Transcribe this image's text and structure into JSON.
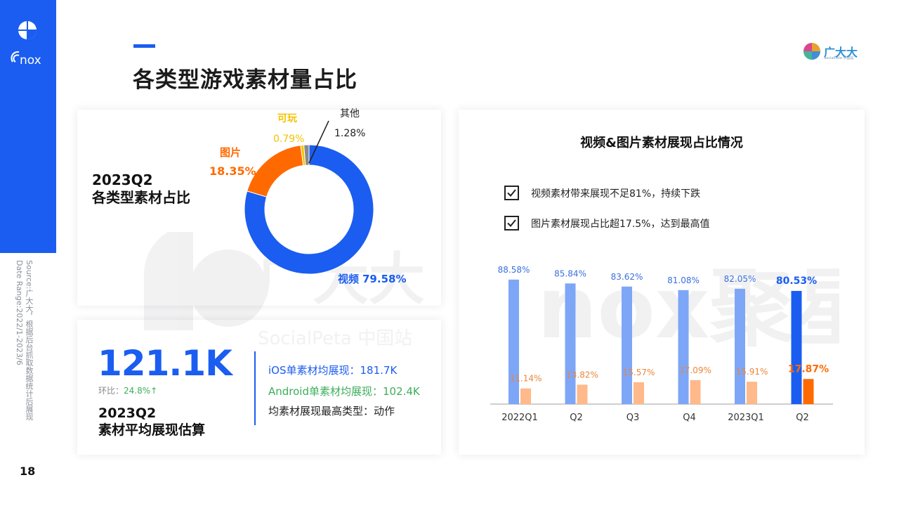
{
  "page": {
    "title": "各类型游戏素材量占比",
    "page_number": "18",
    "source_note": "Source:广大大，根据后台抓取数据统计后展现\nDate Range:2022/1-2023/6"
  },
  "brand": {
    "name": "广大大",
    "sub": "SocialPeta 中国站",
    "logo_text": "nox"
  },
  "donut_card": {
    "period": "2023Q2",
    "subtitle": "各类型素材占比",
    "segments": [
      {
        "name": "视频",
        "value": "79.58%",
        "pct": 79.58,
        "color": "#1a5df0"
      },
      {
        "name": "图片",
        "value": "18.35%",
        "pct": 18.35,
        "color": "#ff6a00"
      },
      {
        "name": "可玩",
        "value": "0.79%",
        "pct": 0.79,
        "color": "#f5c200"
      },
      {
        "name": "其他",
        "value": "1.28%",
        "pct": 1.28,
        "color": "#8a8a8a"
      }
    ]
  },
  "stat_card": {
    "big_value": "121.1K",
    "mom_label": "环比：",
    "mom_value": "24.8%↑",
    "period": "2023Q2",
    "subtitle": "素材平均展现估算",
    "lines": [
      {
        "text": "iOS单素材均展现：181.7K",
        "color": "#1a5df0"
      },
      {
        "text": "Android单素材均展现：102.4K",
        "color": "#3cae5a"
      },
      {
        "text": "均素材展现最高类型：动作",
        "color": "#222222"
      }
    ]
  },
  "bar_card": {
    "title": "视频&图片素材展现占比情况",
    "checks": [
      "视频素材带来展现不足81%，持续下跌",
      "图片素材展现占比超17.5%，达到最高值"
    ]
  },
  "chart_data": {
    "type": "bar",
    "categories": [
      "2022Q1",
      "Q2",
      "Q3",
      "Q4",
      "2023Q1",
      "Q2"
    ],
    "series": [
      {
        "values": [
          88.58,
          85.84,
          83.62,
          81.08,
          82.05,
          80.53
        ],
        "labels": [
          "88.58%",
          "85.84%",
          "83.62%",
          "81.08%",
          "82.05%",
          "80.53%"
        ],
        "color": "#7ea6f7",
        "highlight_color": "#1a5df0"
      },
      {
        "values": [
          11.14,
          13.82,
          15.57,
          17.09,
          15.91,
          17.87
        ],
        "labels": [
          "11.14%",
          "13.82%",
          "15.57%",
          "17.09%",
          "15.91%",
          "17.87%"
        ],
        "color": "#ffb98a",
        "highlight_color": "#ff6a00"
      }
    ],
    "highlight_index": 5,
    "ylim": [
      0,
      100
    ],
    "grid": false,
    "legend": "none"
  }
}
